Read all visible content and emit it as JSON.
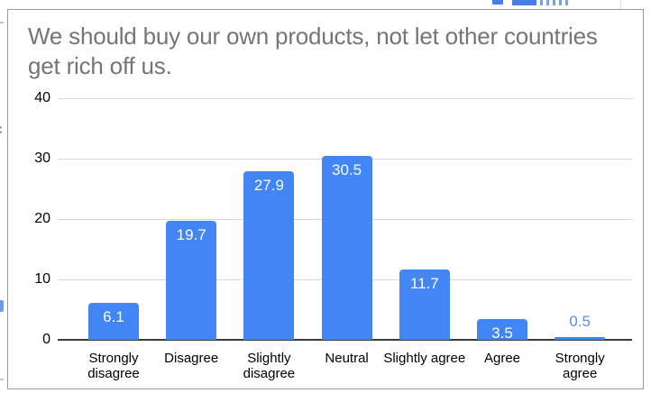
{
  "card": {
    "border_color": "#9b9b9b",
    "background": "#ffffff"
  },
  "artifacts": {
    "left_fragment_letter": "c"
  },
  "chart_data": {
    "type": "bar",
    "title": "We should buy our own products, not let other countries get rich off us.",
    "title_color": "#757575",
    "categories": [
      "Strongly disagree",
      "Disagree",
      "Slightly disagree",
      "Neutral",
      "Slightly agree",
      "Agree",
      "Strongly agree"
    ],
    "values": [
      6.1,
      19.7,
      27.9,
      30.5,
      11.7,
      3.5,
      0.5
    ],
    "data_labels": [
      "6.1",
      "19.7",
      "27.9",
      "30.5",
      "11.7",
      "3.5",
      "0.5"
    ],
    "bar_color": "#4285f4",
    "data_label_color_inside": "#ffffff",
    "data_label_color_outside": "#5c8df0",
    "xlabel": "",
    "ylabel": "",
    "ylim": [
      0,
      40
    ],
    "yticks": [
      0,
      10,
      20,
      30,
      40
    ],
    "grid": true,
    "gridline_color": "#d9d9d9",
    "baseline_color": "#3c3c3c",
    "axis_label_color": "#000000",
    "legend_position": "none"
  }
}
